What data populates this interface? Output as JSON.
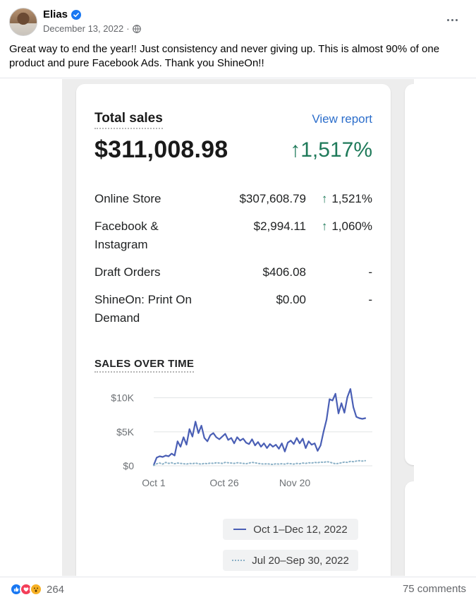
{
  "post": {
    "author": "Elias",
    "date": "December 13, 2022",
    "separator": "·",
    "text": "Great way to end the year!! Just consistency and never giving up.  This is almost 90% of one product and pure Facebook Ads. Thank you ShineOn!!"
  },
  "card": {
    "title": "Total sales",
    "link": "View report",
    "total": "$311,008.98",
    "change": "↑1,517%",
    "subtitle": "SALES OVER TIME",
    "rows": [
      {
        "channel": "Online Store",
        "amount": "$307,608.79",
        "arrow": "↑",
        "pct": "1,521%"
      },
      {
        "channel": "Facebook & Instagram",
        "amount": "$2,994.11",
        "arrow": "↑",
        "pct": "1,060%"
      },
      {
        "channel": "Draft Orders",
        "amount": "$406.08",
        "arrow": "",
        "pct": "-"
      },
      {
        "channel": "ShineOn: Print On Demand",
        "amount": "$0.00",
        "arrow": "",
        "pct": "-"
      }
    ],
    "legend": {
      "current": "Oct 1–Dec 12, 2022",
      "prior": "Jul 20–Sep 30, 2022"
    }
  },
  "chart_data": {
    "type": "line",
    "title": "SALES OVER TIME",
    "xlabel": "",
    "ylabel": "",
    "x_ticks": [
      "Oct 1",
      "Oct 26",
      "Nov 20"
    ],
    "y_ticks": [
      "$0",
      "$5K",
      "$10K"
    ],
    "y_tick_values": [
      0,
      5000,
      10000
    ],
    "ylim": [
      0,
      11000
    ],
    "grid": true,
    "legend_position": "bottom",
    "colors": {
      "current": "#4a5fb5",
      "prior": "#8ab0c6"
    },
    "series": [
      {
        "name": "Oct 1–Dec 12, 2022",
        "style": "solid",
        "values": [
          100,
          1200,
          1400,
          1300,
          1500,
          1400,
          1800,
          1500,
          3600,
          2800,
          4200,
          3100,
          5400,
          4300,
          6500,
          4800,
          5900,
          4100,
          3600,
          4500,
          4800,
          4200,
          3900,
          4300,
          4700,
          3800,
          4100,
          3300,
          4200,
          3700,
          4000,
          3400,
          3200,
          3900,
          3000,
          3500,
          2800,
          3300,
          2600,
          3200,
          2800,
          3100,
          2500,
          3300,
          2100,
          3400,
          3700,
          3200,
          4100,
          3300,
          4000,
          2600,
          3600,
          3100,
          3300,
          2200,
          3000,
          5000,
          6800,
          9800,
          9600,
          10600,
          7700,
          9200,
          7800,
          10100,
          11300,
          8600,
          7200,
          7000,
          6900,
          7000
        ]
      },
      {
        "name": "Jul 20–Sep 30, 2022",
        "style": "dotted",
        "values": [
          50,
          300,
          400,
          250,
          500,
          350,
          450,
          300,
          400,
          350,
          300,
          250,
          350,
          300,
          400,
          300,
          250,
          350,
          300,
          400,
          350,
          450,
          400,
          350,
          500,
          450,
          400,
          350,
          450,
          400,
          350,
          300,
          400,
          500,
          450,
          350,
          300,
          250,
          300,
          250,
          200,
          300,
          250,
          300,
          250,
          350,
          300,
          250,
          350,
          300,
          400,
          350,
          450,
          400,
          500,
          450,
          550,
          500,
          600,
          550,
          400,
          300,
          350,
          450,
          550,
          500,
          650,
          600,
          700,
          750,
          700,
          750
        ]
      }
    ]
  },
  "footer": {
    "reaction_count": "264",
    "comments": "75 comments"
  },
  "icons": {
    "verified": "verified-badge-icon",
    "globe": "globe-icon",
    "more": "more-options-icon",
    "like": "like-reaction-icon",
    "love": "love-reaction-icon",
    "wow": "wow-reaction-icon"
  }
}
